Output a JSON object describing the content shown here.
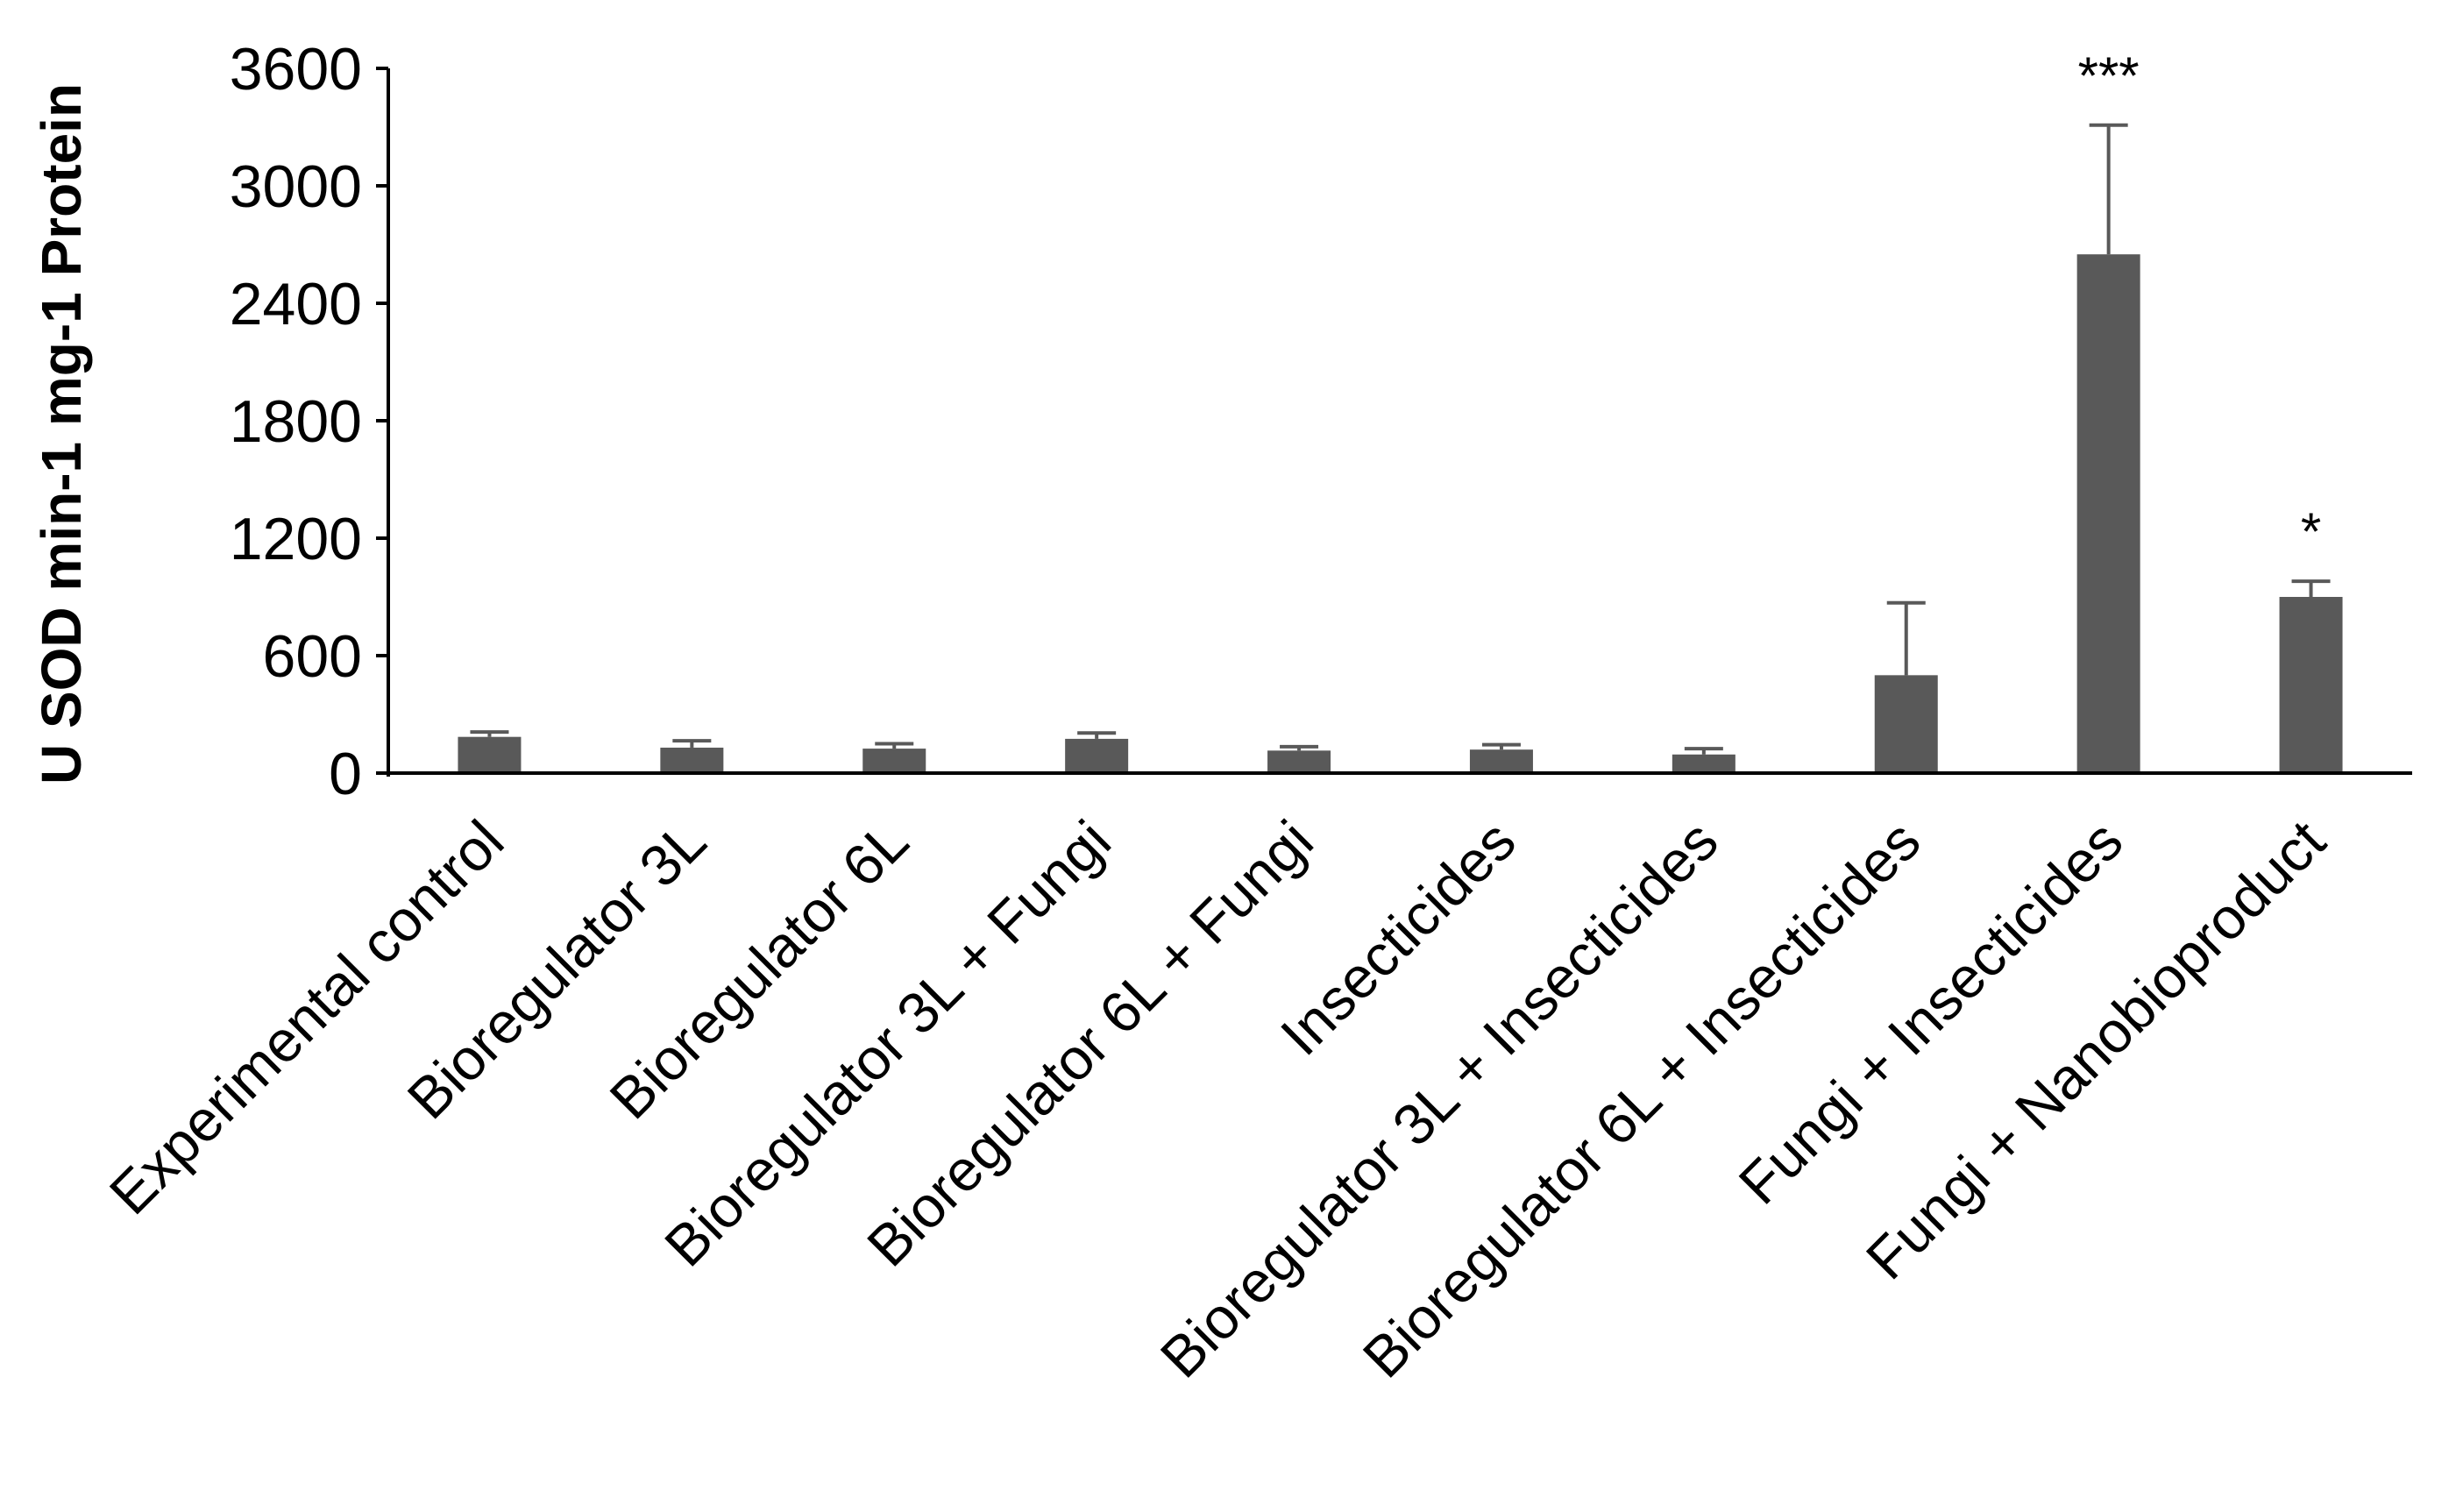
{
  "chart_data": {
    "type": "bar",
    "ylabel": "U SOD min-1 mg-1 Protein",
    "xlabel": "",
    "ylim": [
      0,
      3600
    ],
    "yticks": [
      "0",
      "600",
      "1200",
      "1800",
      "2400",
      "3000",
      "3600"
    ],
    "grid": false,
    "legend": "none",
    "categories": [
      "Experimental control",
      "Bioregulator 3L",
      "Bioregulator 6L",
      "Bioregulator 3L + Fungi",
      "Bioregulator 6L + Fungi",
      "Insecticides",
      "Bioregulator 3L + Insecticides",
      "Bioregulator 6L + Insecticides",
      "Fungi + Insecticides",
      "Fungi + Nanobioproduct"
    ],
    "values": [
      185,
      130,
      125,
      175,
      115,
      120,
      95,
      500,
      2650,
      900
    ],
    "errors": [
      25,
      35,
      25,
      30,
      20,
      25,
      30,
      370,
      660,
      80
    ],
    "significance": [
      "",
      "",
      "",
      "",
      "",
      "",
      "",
      "",
      "***",
      "*"
    ],
    "bar_color": "#595959",
    "axis_color": "#000000"
  }
}
